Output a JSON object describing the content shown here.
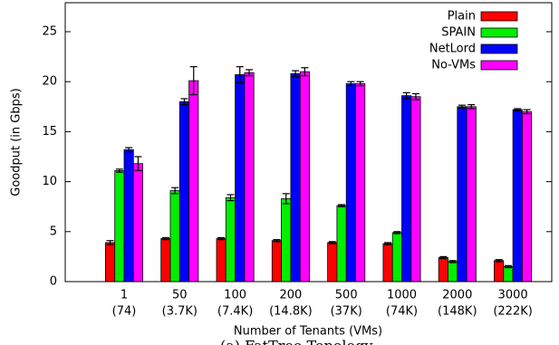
{
  "chart_data": {
    "type": "bar",
    "x_label": "Number of Tenants (VMs)",
    "y_label": "Goodput (in Gbps)",
    "caption": "(a) FatTree Topology",
    "categories": [
      "1",
      "50",
      "100",
      "200",
      "500",
      "1000",
      "2000",
      "3000"
    ],
    "category_sublabels": [
      "(74)",
      "(3.7K)",
      "(7.4K)",
      "(14.8K)",
      "(37K)",
      "(74K)",
      "(148K)",
      "(222K)"
    ],
    "series": [
      {
        "name": "Plain",
        "color": "#ff0000",
        "values": [
          3.9,
          4.3,
          4.3,
          4.1,
          3.9,
          3.8,
          2.4,
          2.1
        ],
        "errors": [
          0.2,
          0.1,
          0.1,
          0.1,
          0.1,
          0.1,
          0.1,
          0.1
        ]
      },
      {
        "name": "SPAIN",
        "color": "#00ee00",
        "values": [
          11.1,
          9.1,
          8.4,
          8.3,
          7.6,
          4.9,
          2.0,
          1.5
        ],
        "errors": [
          0.15,
          0.3,
          0.3,
          0.5,
          0.1,
          0.1,
          0.1,
          0.1
        ]
      },
      {
        "name": "NetLord",
        "color": "#0000ff",
        "values": [
          13.2,
          18.0,
          20.7,
          20.8,
          19.8,
          18.6,
          17.5,
          17.2
        ],
        "errors": [
          0.2,
          0.3,
          0.8,
          0.3,
          0.2,
          0.3,
          0.15,
          0.1
        ]
      },
      {
        "name": "No-VMs",
        "color": "#ff00ff",
        "values": [
          11.8,
          20.1,
          20.9,
          21.0,
          19.8,
          18.5,
          17.5,
          17.0
        ],
        "errors": [
          0.7,
          1.4,
          0.3,
          0.4,
          0.2,
          0.3,
          0.2,
          0.2
        ]
      }
    ],
    "ylim": [
      0,
      27.9
    ],
    "yticks": [
      0,
      5,
      10,
      15,
      20,
      25
    ],
    "legend": "top-right"
  }
}
